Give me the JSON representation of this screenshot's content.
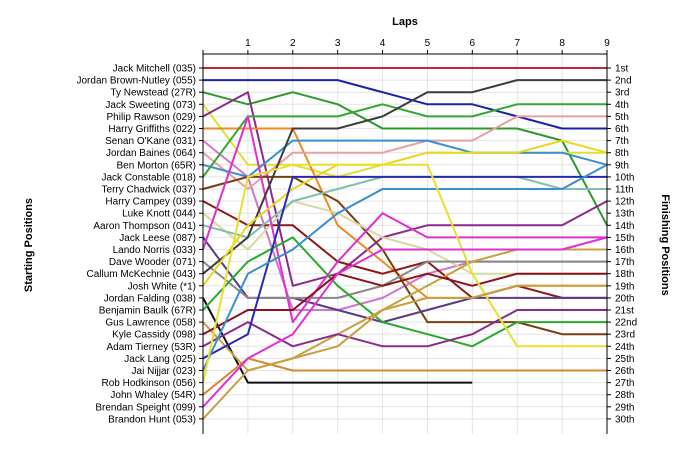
{
  "chart_data": {
    "type": "line",
    "title": "",
    "xlabel": "Laps",
    "ylabel_left": "Starting Positions",
    "ylabel_right": "Finishing Positions",
    "x": [
      0,
      1,
      2,
      3,
      4,
      5,
      6,
      7,
      8,
      9
    ],
    "x_tick_labels": [
      "1",
      "2",
      "3",
      "4",
      "5",
      "6",
      "7",
      "8",
      "9"
    ],
    "ylim": [
      1,
      30
    ],
    "y_inverted": true,
    "grid": true,
    "legend": "none",
    "starting_positions": [
      "Jack Mitchell (035)",
      "Jordan Brown-Nutley (055)",
      "Ty Newstead (27R)",
      "Jack Sweeting (073)",
      "Philip Rawson (029)",
      "Harry Griffiths (022)",
      "Senan O'Kane (031)",
      "Jordan Baines (064)",
      "Ben Morton (65R)",
      "Jack Constable (018)",
      "Terry Chadwick (037)",
      "Harry Campey (039)",
      "Luke Knott (044)",
      "Aaron Thompson (041)",
      "Jack Leese (087)",
      "Lando Norris (033)",
      "Dave Wooder (071)",
      "Callum McKechnie (043)",
      "Josh White (*1)",
      "Jordan Falding (038)",
      "Benjamin Baulk (67R)",
      "Gus Lawrence (058)",
      "Kyle Cassidy (098)",
      "Adam Tierney (53R)",
      "Jack Lang (025)",
      "Jai Nijjar (023)",
      "Rob Hodkinson (056)",
      "John Whaley (54R)",
      "Brendan Speight (099)",
      "Brandon Hunt (053)"
    ],
    "finishing_positions": [
      "1st",
      "2nd",
      "3rd",
      "4th",
      "5th",
      "6th",
      "7th",
      "8th",
      "9th",
      "10th",
      "11th",
      "12th",
      "13th",
      "14th",
      "15th",
      "16th",
      "17th",
      "18th",
      "19th",
      "20th",
      "21st",
      "22nd",
      "23rd",
      "24th",
      "25th",
      "26th",
      "27th",
      "28th",
      "29th",
      "30th"
    ],
    "series": [
      {
        "color": "#c0283c",
        "positions": [
          1,
          1,
          1,
          1,
          1,
          1,
          1,
          1,
          1,
          1
        ]
      },
      {
        "color": "#1c22a8",
        "positions": [
          2,
          2,
          2,
          2,
          3,
          4,
          4,
          5,
          6,
          6
        ]
      },
      {
        "color": "#2e9a2e",
        "positions": [
          3,
          4,
          3,
          4,
          6,
          6,
          6,
          6,
          7,
          14
        ]
      },
      {
        "color": "#e0e030",
        "positions": [
          4,
          9,
          9,
          10,
          9,
          8,
          8,
          8,
          8,
          8
        ]
      },
      {
        "color": "#8a2a8a",
        "positions": [
          5,
          3,
          19,
          18,
          15,
          14,
          14,
          14,
          14,
          12
        ]
      },
      {
        "color": "#f08a20",
        "positions": [
          6,
          6,
          6,
          14,
          17,
          20,
          20,
          19,
          19,
          19
        ]
      },
      {
        "color": "#cc77cc",
        "positions": [
          7,
          10,
          21,
          21,
          20,
          18,
          17,
          17,
          17,
          17
        ]
      },
      {
        "color": "#e8a0a0",
        "positions": [
          8,
          11,
          8,
          8,
          8,
          7,
          7,
          5,
          5,
          5
        ]
      },
      {
        "color": "#3a8fd0",
        "positions": [
          9,
          10,
          7,
          7,
          7,
          7,
          8,
          8,
          8,
          9
        ]
      },
      {
        "color": "#35a835",
        "positions": [
          10,
          5,
          5,
          5,
          4,
          5,
          5,
          4,
          4,
          4
        ]
      },
      {
        "color": "#7a3e0e",
        "positions": [
          11,
          10,
          10,
          12,
          16,
          22,
          22,
          22,
          23,
          23
        ]
      },
      {
        "color": "#8b1a1a",
        "positions": [
          12,
          14,
          14,
          17,
          18,
          17,
          20,
          19,
          20,
          20
        ]
      },
      {
        "color": "#d8d8a0",
        "positions": [
          13,
          16,
          12,
          13,
          15,
          16,
          18,
          18,
          18,
          18
        ]
      },
      {
        "color": "#7fc0b0",
        "positions": [
          14,
          15,
          12,
          11,
          10,
          10,
          10,
          10,
          11,
          11
        ]
      },
      {
        "color": "#5c3a8a",
        "positions": [
          15,
          20,
          20,
          21,
          22,
          21,
          20,
          20,
          20,
          20
        ]
      },
      {
        "color": "#e030d0",
        "positions": [
          16,
          5,
          22,
          17,
          13,
          15,
          15,
          15,
          15,
          15
        ]
      },
      {
        "color": "#888888",
        "positions": [
          17,
          20,
          20,
          20,
          19,
          17,
          17,
          17,
          17,
          17
        ]
      },
      {
        "color": "#3c3c3c",
        "positions": [
          18,
          15,
          6,
          6,
          5,
          3,
          3,
          2,
          2,
          2
        ]
      },
      {
        "color": "#e8d820",
        "positions": [
          19,
          14,
          11,
          9,
          9,
          8,
          8,
          8,
          7,
          8
        ]
      },
      {
        "color": "#101010",
        "positions": [
          20,
          27,
          27,
          27,
          27,
          27,
          27
        ]
      },
      {
        "color": "#2aaa2a",
        "positions": [
          21,
          17,
          15,
          19,
          22,
          23,
          24,
          22,
          22,
          22
        ]
      },
      {
        "color": "#c8a040",
        "positions": [
          22,
          26,
          25,
          23,
          21,
          19,
          17,
          16,
          16,
          16
        ]
      },
      {
        "color": "#8b1020",
        "positions": [
          23,
          21,
          21,
          18,
          19,
          18,
          19,
          18,
          18,
          18
        ]
      },
      {
        "color": "#8a2a8a",
        "positions": [
          24,
          22,
          24,
          23,
          24,
          24,
          23,
          21,
          21,
          21
        ]
      },
      {
        "color": "#2a2ab0",
        "positions": [
          25,
          23,
          10,
          10,
          10,
          10,
          10,
          10,
          10,
          10
        ]
      },
      {
        "color": "#3a8fd0",
        "positions": [
          26,
          18,
          16,
          13,
          11,
          11,
          11,
          11,
          11,
          9
        ]
      },
      {
        "color": "#e8e030",
        "positions": [
          27,
          10,
          9,
          9,
          9,
          9,
          18,
          24,
          24,
          24
        ]
      },
      {
        "color": "#d88830",
        "positions": [
          28,
          25,
          26,
          26,
          26,
          26,
          26,
          26,
          26,
          26
        ]
      },
      {
        "color": "#e030d0",
        "positions": [
          29,
          25,
          23,
          18,
          16,
          16,
          16,
          16,
          16,
          15
        ]
      },
      {
        "color": "#c8a040",
        "positions": [
          30,
          26,
          25,
          24,
          21,
          20,
          20,
          19,
          19,
          19
        ]
      }
    ]
  }
}
